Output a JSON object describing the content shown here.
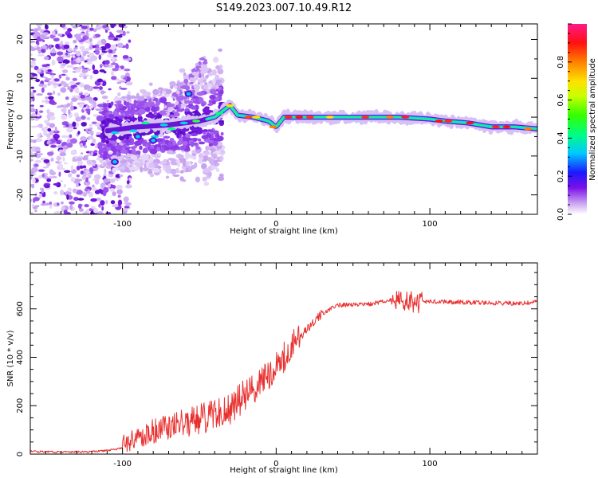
{
  "title": "S149.2023.007.10.49.R12",
  "chart_data": [
    {
      "type": "heatmap",
      "name": "spectrogram",
      "xlabel": "Height of straight line (km)",
      "ylabel": "Frequency (Hz)",
      "xlim": [
        -160,
        170
      ],
      "ylim": [
        -25,
        24
      ],
      "xticks": [
        -100,
        0,
        100
      ],
      "yticks": [
        -20,
        -10,
        0,
        10,
        20
      ],
      "colorbar": {
        "label": "Normalized spectral amplitude",
        "range": [
          0,
          1
        ],
        "ticks": [
          0.0,
          0.2,
          0.4,
          0.6,
          0.8
        ]
      },
      "ridge": [
        [
          -110,
          -3.5
        ],
        [
          -90,
          -2.5
        ],
        [
          -70,
          -2.0
        ],
        [
          -50,
          -1.0
        ],
        [
          -40,
          0.0
        ],
        [
          -30,
          3.0
        ],
        [
          -25,
          0.5
        ],
        [
          -15,
          0.0
        ],
        [
          -5,
          -1.0
        ],
        [
          0,
          -2.5
        ],
        [
          5,
          0.0
        ],
        [
          20,
          0.0
        ],
        [
          40,
          0.0
        ],
        [
          60,
          0.0
        ],
        [
          80,
          0.0
        ],
        [
          100,
          -0.5
        ],
        [
          110,
          -1.0
        ],
        [
          125,
          -1.5
        ],
        [
          140,
          -2.5
        ],
        [
          155,
          -2.5
        ],
        [
          170,
          -3.0
        ]
      ]
    },
    {
      "type": "line",
      "name": "snr",
      "xlabel": "Height of straight line (km)",
      "ylabel": "SNR (10 * v/v)",
      "xlim": [
        -160,
        170
      ],
      "ylim": [
        0,
        790
      ],
      "xticks": [
        -100,
        0,
        100
      ],
      "yticks": [
        0,
        200,
        400,
        600
      ],
      "color": "#e8302f",
      "series": [
        {
          "name": "SNR",
          "x": [
            -160,
            -140,
            -120,
            -110,
            -100,
            -90,
            -80,
            -70,
            -60,
            -50,
            -40,
            -30,
            -20,
            -10,
            0,
            10,
            20,
            30,
            40,
            60,
            80,
            90,
            100,
            120,
            140,
            160,
            170
          ],
          "y": [
            12,
            8,
            10,
            15,
            25,
            55,
            80,
            95,
            110,
            125,
            140,
            160,
            220,
            280,
            340,
            420,
            520,
            580,
            615,
            620,
            640,
            625,
            630,
            628,
            625,
            622,
            630
          ]
        }
      ]
    }
  ]
}
